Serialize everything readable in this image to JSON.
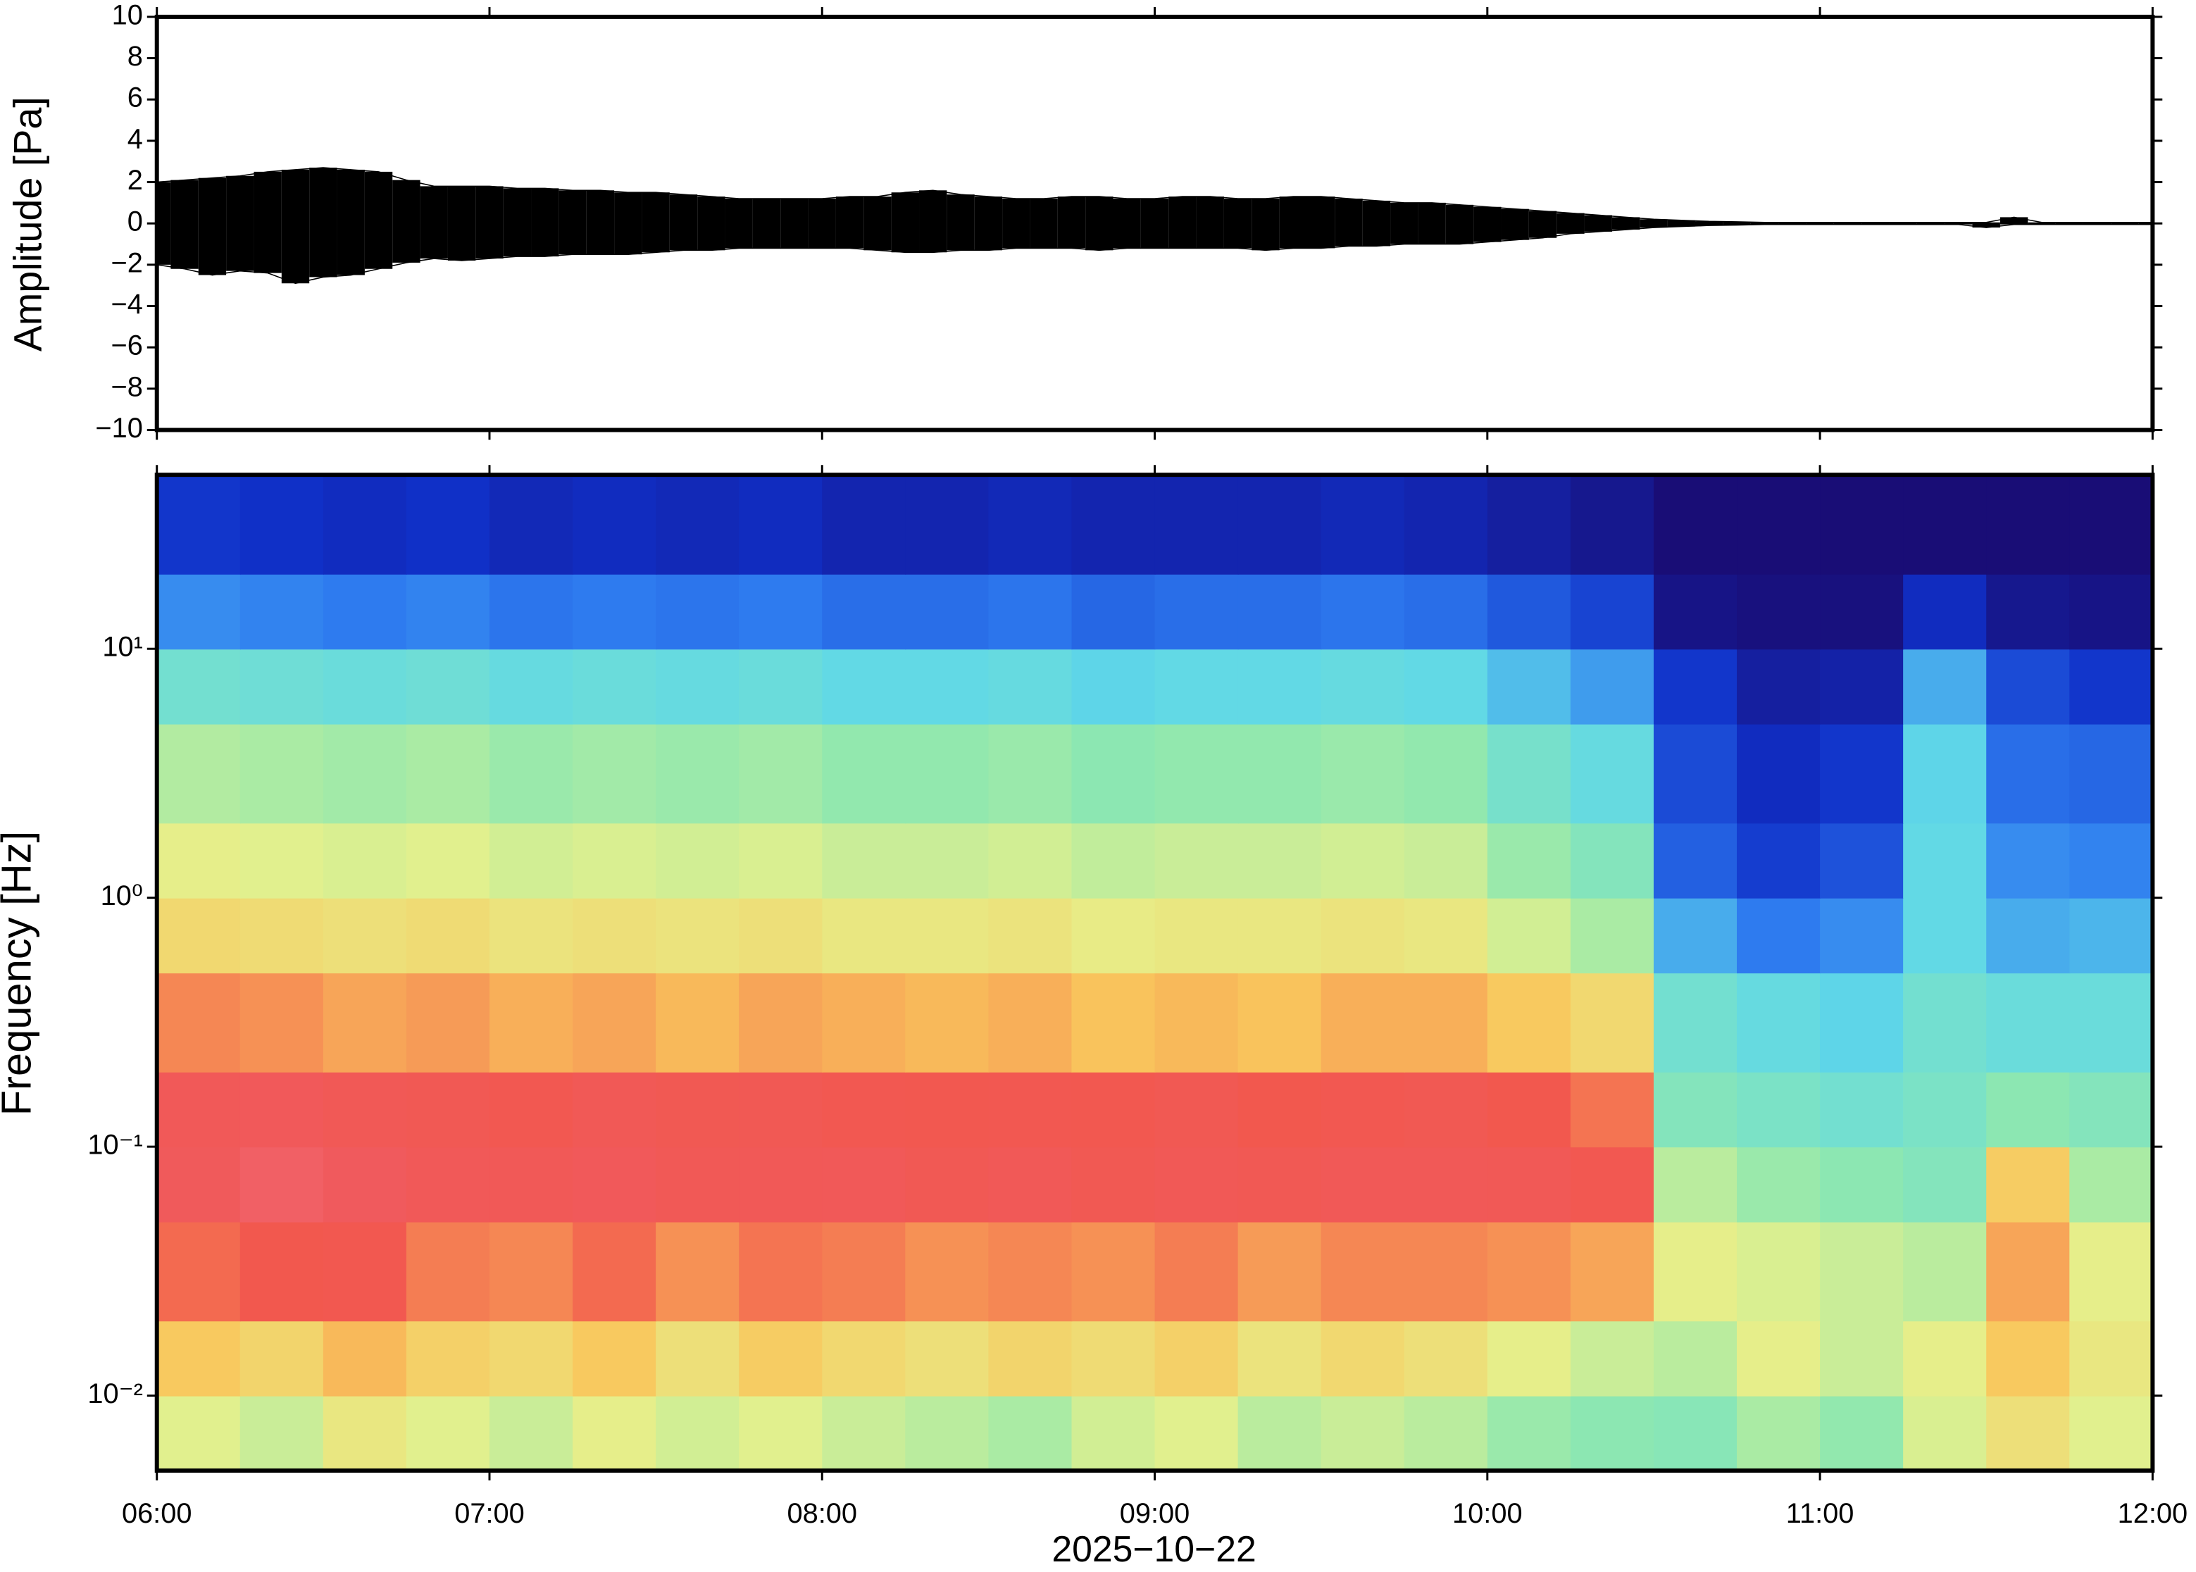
{
  "chart_data": [
    {
      "type": "area",
      "ylabel": "Amplitude [Pa]",
      "x": [
        360,
        365,
        370,
        375,
        380,
        385,
        390,
        395,
        400,
        405,
        410,
        415,
        420,
        425,
        430,
        435,
        440,
        445,
        450,
        455,
        460,
        465,
        470,
        475,
        480,
        485,
        490,
        495,
        500,
        505,
        510,
        515,
        520,
        525,
        530,
        535,
        540,
        545,
        550,
        555,
        560,
        565,
        570,
        575,
        580,
        585,
        590,
        595,
        600,
        605,
        610,
        615,
        620,
        625,
        630,
        635,
        640,
        645,
        650,
        655,
        660,
        665,
        670,
        675,
        680,
        685,
        690,
        695,
        700,
        705,
        710,
        715,
        720
      ],
      "series": [
        {
          "color": "#000000",
          "values": [
            2.0,
            2.1,
            2.2,
            2.3,
            2.5,
            2.6,
            2.7,
            2.6,
            2.5,
            2.1,
            1.8,
            1.8,
            1.8,
            1.7,
            1.7,
            1.6,
            1.6,
            1.5,
            1.5,
            1.4,
            1.3,
            1.2,
            1.2,
            1.2,
            1.2,
            1.3,
            1.3,
            1.5,
            1.6,
            1.4,
            1.3,
            1.2,
            1.2,
            1.3,
            1.3,
            1.2,
            1.2,
            1.3,
            1.3,
            1.2,
            1.2,
            1.3,
            1.3,
            1.2,
            1.1,
            1.0,
            1.0,
            0.9,
            0.8,
            0.7,
            0.6,
            0.5,
            0.4,
            0.3,
            0.2,
            0.15,
            0.1,
            0.08,
            0.05,
            0.05,
            0.05,
            0.05,
            0.05,
            0.05,
            0.05,
            0.05,
            0.05,
            0.3,
            0.05,
            0.05,
            0.05,
            0.05,
            0.05
          ]
        },
        {
          "color": "#000000",
          "values": [
            -2.0,
            -2.2,
            -2.5,
            -2.3,
            -2.4,
            -2.9,
            -2.6,
            -2.5,
            -2.2,
            -1.9,
            -1.7,
            -1.8,
            -1.7,
            -1.6,
            -1.6,
            -1.5,
            -1.5,
            -1.5,
            -1.4,
            -1.3,
            -1.3,
            -1.2,
            -1.2,
            -1.2,
            -1.2,
            -1.2,
            -1.3,
            -1.4,
            -1.4,
            -1.3,
            -1.3,
            -1.2,
            -1.2,
            -1.2,
            -1.3,
            -1.2,
            -1.2,
            -1.2,
            -1.2,
            -1.2,
            -1.3,
            -1.2,
            -1.2,
            -1.1,
            -1.1,
            -1.0,
            -1.0,
            -1.0,
            -0.9,
            -0.8,
            -0.7,
            -0.5,
            -0.4,
            -0.3,
            -0.2,
            -0.15,
            -0.1,
            -0.08,
            -0.05,
            -0.05,
            -0.05,
            -0.05,
            -0.05,
            -0.05,
            -0.05,
            -0.05,
            -0.2,
            -0.05,
            -0.05,
            -0.05,
            -0.05,
            -0.05,
            -0.05
          ]
        }
      ],
      "xlim": [
        360,
        720
      ],
      "xticks": [
        360,
        420,
        480,
        540,
        600,
        660,
        720
      ],
      "ylim": [
        -10,
        10
      ],
      "yticks": [
        {
          "value": -10,
          "label": "−10"
        },
        {
          "value": -8,
          "label": "−8"
        },
        {
          "value": -6,
          "label": "−6"
        },
        {
          "value": -4,
          "label": "−4"
        },
        {
          "value": -2,
          "label": "−2"
        },
        0,
        2,
        4,
        6,
        8,
        10
      ]
    },
    {
      "type": "heatmap",
      "ylabel": "Frequency [Hz]",
      "xlabel": "2025−10−22",
      "log_y": true,
      "x": [
        360,
        375,
        390,
        405,
        420,
        435,
        450,
        465,
        480,
        495,
        510,
        525,
        540,
        555,
        570,
        585,
        600,
        615,
        630,
        645,
        660,
        675,
        690,
        705,
        720
      ],
      "y": [
        0.005,
        0.01,
        0.02,
        0.05,
        0.1,
        0.2,
        0.5,
        1,
        2,
        5,
        10,
        20,
        50
      ],
      "z": [
        [
          5.5,
          5.2,
          5.8,
          5.5,
          5.2,
          5.6,
          5.3,
          5.5,
          5.2,
          5.0,
          4.8,
          5.3,
          5.5,
          5.0,
          5.2,
          5.0,
          4.6,
          4.4,
          4.3,
          4.8,
          4.5,
          5.4,
          6.0,
          5.5
        ],
        [
          6.6,
          6.3,
          6.8,
          6.4,
          6.2,
          6.6,
          6.0,
          6.5,
          6.2,
          6.0,
          6.3,
          6.1,
          6.4,
          5.9,
          6.2,
          6.0,
          5.6,
          5.2,
          5.0,
          5.6,
          5.2,
          5.6,
          6.6,
          5.8
        ],
        [
          7.6,
          7.8,
          7.9,
          7.4,
          7.3,
          7.6,
          7.2,
          7.5,
          7.4,
          7.2,
          7.3,
          7.2,
          7.4,
          7.1,
          7.3,
          7.3,
          7.2,
          7.0,
          5.6,
          5.4,
          5.2,
          5.0,
          7.0,
          5.6
        ],
        [
          8.7,
          9.0,
          8.8,
          8.5,
          8.4,
          8.6,
          8.3,
          8.4,
          8.5,
          8.2,
          8.4,
          8.1,
          8.3,
          8.2,
          8.4,
          8.4,
          8.3,
          8.0,
          5.0,
          4.6,
          4.4,
          4.2,
          6.5,
          4.8
        ],
        [
          8.5,
          8.6,
          8.3,
          8.2,
          8.0,
          8.3,
          8.1,
          8.2,
          8.0,
          7.9,
          8.0,
          7.9,
          8.1,
          7.8,
          8.0,
          8.1,
          7.8,
          7.5,
          4.2,
          4.0,
          3.8,
          4.0,
          4.4,
          4.2
        ],
        [
          7.3,
          7.2,
          7.0,
          7.1,
          6.9,
          7.0,
          6.8,
          7.0,
          6.9,
          6.8,
          6.9,
          6.7,
          6.8,
          6.7,
          6.9,
          6.9,
          6.6,
          6.2,
          3.8,
          3.5,
          3.3,
          3.8,
          3.6,
          3.6
        ],
        [
          6.2,
          6.1,
          6.0,
          6.1,
          5.9,
          6.0,
          5.9,
          6.0,
          5.8,
          5.8,
          5.9,
          5.7,
          5.8,
          5.8,
          5.9,
          5.8,
          5.3,
          4.8,
          2.8,
          2.2,
          2.4,
          3.4,
          2.8,
          2.9
        ],
        [
          5.6,
          5.5,
          5.4,
          5.5,
          5.3,
          5.4,
          5.3,
          5.4,
          5.2,
          5.2,
          5.3,
          5.1,
          5.2,
          5.2,
          5.3,
          5.2,
          4.6,
          4.2,
          1.8,
          1.3,
          1.6,
          3.4,
          2.4,
          2.3
        ],
        [
          4.9,
          4.8,
          4.7,
          4.8,
          4.6,
          4.7,
          4.6,
          4.7,
          4.5,
          4.5,
          4.6,
          4.4,
          4.5,
          4.5,
          4.6,
          4.5,
          3.9,
          3.5,
          1.5,
          1.0,
          1.2,
          3.3,
          2.0,
          1.9
        ],
        [
          3.8,
          3.7,
          3.6,
          3.7,
          3.5,
          3.6,
          3.5,
          3.6,
          3.4,
          3.4,
          3.5,
          3.3,
          3.4,
          3.4,
          3.5,
          3.4,
          3.0,
          2.6,
          1.2,
          0.6,
          0.7,
          2.8,
          1.5,
          1.2
        ],
        [
          2.4,
          2.3,
          2.2,
          2.3,
          2.1,
          2.2,
          2.1,
          2.2,
          2.0,
          2.0,
          2.1,
          1.9,
          2.0,
          2.0,
          2.1,
          2.0,
          1.7,
          1.4,
          0.3,
          0.2,
          0.2,
          1.0,
          0.4,
          0.3
        ],
        [
          1.2,
          1.1,
          1.0,
          1.1,
          0.9,
          1.0,
          0.9,
          1.0,
          0.8,
          0.8,
          0.9,
          0.8,
          0.8,
          0.8,
          0.9,
          0.8,
          0.6,
          0.4,
          0.1,
          0.1,
          0.1,
          0.1,
          0.1,
          0.1
        ]
      ],
      "zlim": [
        0,
        10
      ],
      "colormap": [
        "#1a0a6e",
        "#1030c8",
        "#2f7df0",
        "#5fd8e8",
        "#8ee8b0",
        "#e5f08c",
        "#f9c65c",
        "#f2584e",
        "#f05a5e",
        "#f898a0"
      ],
      "xlim": [
        360,
        720
      ],
      "xticks": [
        {
          "value": 360,
          "label": "06:00"
        },
        {
          "value": 420,
          "label": "07:00"
        },
        {
          "value": 480,
          "label": "08:00"
        },
        {
          "value": 540,
          "label": "09:00"
        },
        {
          "value": 600,
          "label": "10:00"
        },
        {
          "value": 660,
          "label": "11:00"
        },
        {
          "value": 720,
          "label": "12:00"
        }
      ],
      "ylim": [
        0.005,
        50
      ],
      "yticks": [
        {
          "value": 0.01,
          "label": "10⁻²"
        },
        {
          "value": 0.1,
          "label": "10⁻¹"
        },
        {
          "value": 1,
          "label": "10⁰"
        },
        {
          "value": 10,
          "label": "10¹"
        }
      ]
    }
  ]
}
